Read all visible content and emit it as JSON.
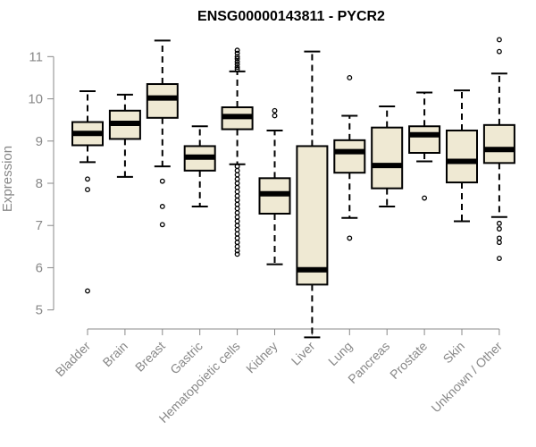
{
  "chart_data": {
    "type": "box",
    "title": "ENSG00000143811 - PYCR2",
    "ylabel": "Expression",
    "xlabel": "",
    "ylim": [
      4.4,
      11.6
    ],
    "yticks": [
      5,
      6,
      7,
      8,
      9,
      10,
      11
    ],
    "box_fill": "#efe9d3",
    "box_stroke": "#000000",
    "axis_color": "#888888",
    "categories": [
      "Bladder",
      "Brain",
      "Breast",
      "Gastric",
      "Hematopoietic cells",
      "Kidney",
      "Liver",
      "Lung",
      "Pancreas",
      "Prostate",
      "Skin",
      "Unknown / Other"
    ],
    "series": [
      {
        "category": "Bladder",
        "whisker_low": 8.5,
        "q1": 8.9,
        "median": 9.18,
        "q3": 9.45,
        "whisker_high": 10.18,
        "outliers": [
          8.1,
          7.85,
          5.45
        ]
      },
      {
        "category": "Brain",
        "whisker_low": 8.15,
        "q1": 9.05,
        "median": 9.42,
        "q3": 9.72,
        "whisker_high": 10.1,
        "outliers": []
      },
      {
        "category": "Breast",
        "whisker_low": 8.4,
        "q1": 9.55,
        "median": 10.02,
        "q3": 10.35,
        "whisker_high": 11.38,
        "outliers": [
          8.05,
          7.45,
          7.02
        ]
      },
      {
        "category": "Gastric",
        "whisker_low": 7.45,
        "q1": 8.3,
        "median": 8.62,
        "q3": 8.88,
        "whisker_high": 9.35,
        "outliers": []
      },
      {
        "category": "Hematopoietic cells",
        "whisker_low": 8.45,
        "q1": 9.28,
        "median": 9.58,
        "q3": 9.8,
        "whisker_high": 10.65,
        "outliers": [
          11.15,
          11.08,
          11.0,
          10.95,
          10.88,
          10.82,
          10.75,
          10.7,
          8.4,
          8.3,
          8.2,
          8.1,
          8.0,
          7.9,
          7.8,
          7.7,
          7.6,
          7.5,
          7.4,
          7.3,
          7.2,
          7.1,
          7.0,
          6.9,
          6.8,
          6.7,
          6.6,
          6.5,
          6.4,
          6.32
        ]
      },
      {
        "category": "Kidney",
        "whisker_low": 6.08,
        "q1": 7.28,
        "median": 7.75,
        "q3": 8.12,
        "whisker_high": 9.25,
        "outliers": [
          9.72,
          9.6
        ]
      },
      {
        "category": "Liver",
        "whisker_low": 4.35,
        "q1": 5.6,
        "median": 5.95,
        "q3": 8.88,
        "whisker_high": 11.12,
        "outliers": []
      },
      {
        "category": "Lung",
        "whisker_low": 7.18,
        "q1": 8.25,
        "median": 8.75,
        "q3": 9.02,
        "whisker_high": 9.6,
        "outliers": [
          10.5,
          6.7
        ]
      },
      {
        "category": "Pancreas",
        "whisker_low": 7.45,
        "q1": 7.88,
        "median": 8.42,
        "q3": 9.32,
        "whisker_high": 9.82,
        "outliers": []
      },
      {
        "category": "Prostate",
        "whisker_low": 8.52,
        "q1": 8.72,
        "median": 9.15,
        "q3": 9.35,
        "whisker_high": 10.15,
        "outliers": [
          7.65
        ]
      },
      {
        "category": "Skin",
        "whisker_low": 7.1,
        "q1": 8.02,
        "median": 8.52,
        "q3": 9.25,
        "whisker_high": 10.2,
        "outliers": []
      },
      {
        "category": "Unknown / Other",
        "whisker_low": 7.2,
        "q1": 8.48,
        "median": 8.8,
        "q3": 9.38,
        "whisker_high": 10.6,
        "outliers": [
          11.4,
          11.12,
          7.05,
          6.92,
          6.7,
          6.6,
          6.22
        ]
      }
    ]
  }
}
